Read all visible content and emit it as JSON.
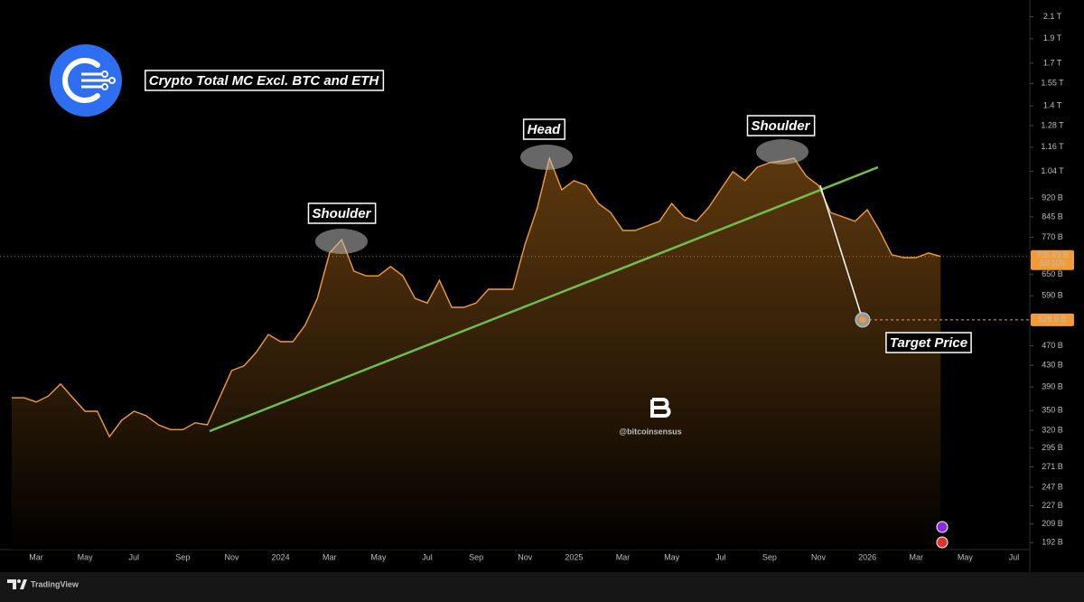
{
  "chart_data": {
    "type": "area",
    "title": "Crypto Total MC Excl. BTC and ETH",
    "watermark": "@bitcoinsensus",
    "brand": "TradingView",
    "log_scale": true,
    "grid": false,
    "categories": [
      null,
      null,
      "Mar",
      null,
      null,
      null,
      "May",
      null,
      null,
      null,
      "Jul",
      null,
      null,
      null,
      "Sep",
      null,
      null,
      null,
      "Nov",
      null,
      null,
      null,
      "2024",
      null,
      null,
      null,
      "Mar",
      null,
      null,
      null,
      "May",
      null,
      null,
      null,
      "Jul",
      null,
      null,
      null,
      "Sep",
      null,
      null,
      null,
      "Nov",
      null,
      null,
      null,
      "2025",
      null,
      null,
      null,
      "Mar",
      null,
      null,
      null,
      "May",
      null,
      null,
      null,
      "Jul",
      null,
      null,
      null,
      "Sep",
      null,
      null,
      null,
      "Nov",
      null,
      null,
      null,
      "2026",
      null,
      null,
      null,
      "Mar",
      null,
      null,
      null,
      "May",
      null,
      null,
      null,
      "Jul"
    ],
    "series": [
      {
        "name": "Crypto Total MC Excl. BTC and ETH",
        "color": "#f39c37",
        "values": [
          371,
          371,
          364,
          374,
          395,
          371,
          349,
          349,
          311,
          335,
          349,
          342,
          328,
          321,
          321,
          331,
          328,
          371,
          420,
          429,
          456,
          495,
          479,
          479,
          516,
          583,
          717,
          762,
          660,
          646,
          646,
          674,
          646,
          583,
          571,
          633,
          560,
          560,
          571,
          608,
          608,
          608,
          747,
          880,
          1104,
          956,
          996,
          975,
          898,
          862,
          794,
          794,
          811,
          828,
          898,
          845,
          828,
          880,
          956,
          1038,
          996,
          1059,
          1081,
          1090,
          1104,
          1017,
          975,
          862,
          845,
          828,
          873,
          794,
          711,
          702,
          702,
          717,
          705.69,
          null,
          null,
          null,
          null,
          null,
          null
        ]
      }
    ],
    "last_label": "705.69 B",
    "countdown": "6d 10h",
    "ylim": [
      186,
      2220
    ],
    "yticks": [
      {
        "value": 2100,
        "label": "2.1 T"
      },
      {
        "value": 1900,
        "label": "1.9 T"
      },
      {
        "value": 1700,
        "label": "1.7 T"
      },
      {
        "value": 1550,
        "label": "1.55 T"
      },
      {
        "value": 1400,
        "label": "1.4 T"
      },
      {
        "value": 1280,
        "label": "1.28 T"
      },
      {
        "value": 1160,
        "label": "1.16 T"
      },
      {
        "value": 1040,
        "label": "1.04 T"
      },
      {
        "value": 920,
        "label": "920 B"
      },
      {
        "value": 845,
        "label": "845 B"
      },
      {
        "value": 770,
        "label": "770 B"
      },
      {
        "value": 650,
        "label": "650 B"
      },
      {
        "value": 590,
        "label": "590 B"
      },
      {
        "value": 470,
        "label": "470 B"
      },
      {
        "value": 430,
        "label": "430 B"
      },
      {
        "value": 390,
        "label": "390 B"
      },
      {
        "value": 350,
        "label": "350 B"
      },
      {
        "value": 320,
        "label": "320 B"
      },
      {
        "value": 295,
        "label": "295 B"
      },
      {
        "value": 271,
        "label": "271 B"
      },
      {
        "value": 247,
        "label": "247 B"
      },
      {
        "value": 227,
        "label": "227 B"
      },
      {
        "value": 209,
        "label": "209 B"
      },
      {
        "value": 192,
        "label": "192 B"
      }
    ],
    "annotations": [
      "Shoulder",
      "Head",
      "Shoulder"
    ],
    "target": {
      "label": "Target Price",
      "value": 528.9,
      "value_label": "528.9 B"
    }
  }
}
